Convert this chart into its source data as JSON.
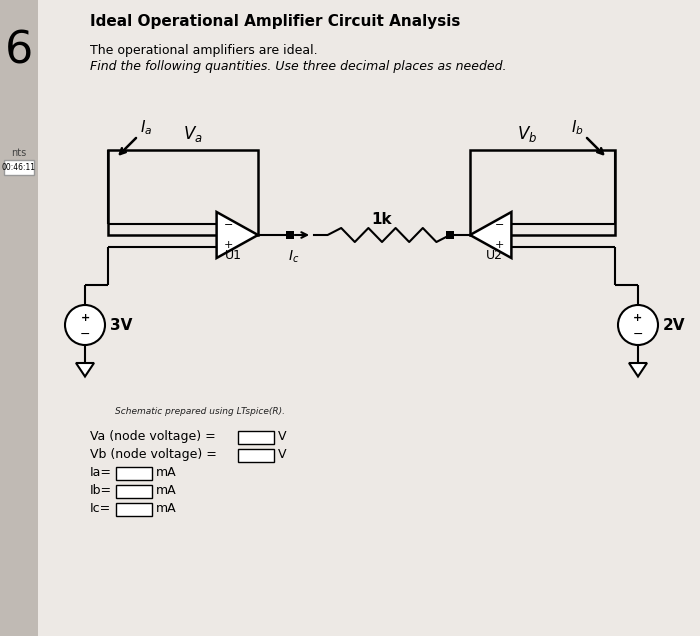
{
  "title": "Ideal Operational Amplifier Circuit Analysis",
  "subtitle1": "The operational amplifiers are ideal.",
  "subtitle2": "Find the following quantities. Use three decimal places as needed.",
  "number": "6",
  "side_label1": "nts",
  "side_label2": "00:46:11",
  "schematic_note": "Schematic prepared using LTspice(R).",
  "bg_color": "#e8e4e0",
  "main_bg": "#ede9e5",
  "left_panel_color": "#c0bab4",
  "white": "#ffffff",
  "black": "#000000",
  "title_fontsize": 11,
  "subtitle_fontsize": 9,
  "number_fontsize": 32
}
